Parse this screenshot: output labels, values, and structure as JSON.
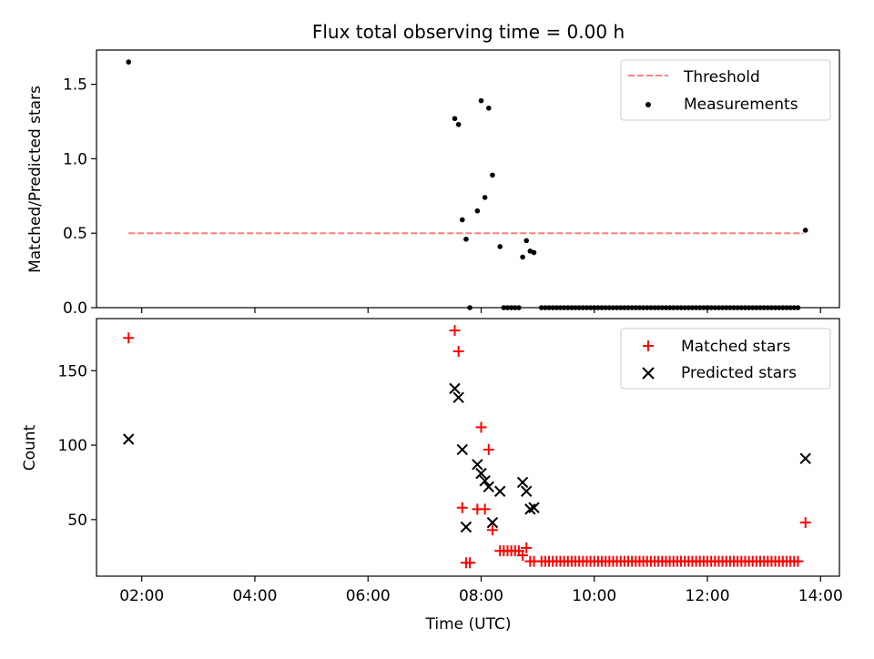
{
  "chart_data": [
    {
      "type": "scatter",
      "title": "Flux total observing time = 0.00 h",
      "xlabel": "",
      "ylabel": "Matched/Predicted stars",
      "xlim": [
        "01:12",
        "14:20"
      ],
      "ylim": [
        0,
        1.73
      ],
      "yticks": [
        0.0,
        0.5,
        1.0,
        1.5
      ],
      "ytick_labels": [
        "0.0",
        "0.5",
        "1.0",
        "1.5"
      ],
      "legend_position": "top-right",
      "threshold": {
        "name": "Threshold",
        "value": 0.5,
        "x": [
          "01:46",
          "13:42"
        ],
        "color": "#ff7f7f",
        "style": "dashed"
      },
      "series": [
        {
          "name": "Measurements",
          "color": "#000000",
          "marker": "dot",
          "points": [
            [
              "01:46",
              1.65
            ],
            [
              "07:32",
              1.27
            ],
            [
              "07:36",
              1.23
            ],
            [
              "07:40",
              0.59
            ],
            [
              "07:44",
              0.46
            ],
            [
              "07:48",
              0.0
            ],
            [
              "07:56",
              0.65
            ],
            [
              "08:00",
              1.39
            ],
            [
              "08:04",
              0.74
            ],
            [
              "08:08",
              1.34
            ],
            [
              "08:12",
              0.89
            ],
            [
              "08:20",
              0.41
            ],
            [
              "08:24",
              0.0
            ],
            [
              "08:28",
              0.0
            ],
            [
              "08:32",
              0.0
            ],
            [
              "08:36",
              0.0
            ],
            [
              "08:40",
              0.0
            ],
            [
              "08:44",
              0.34
            ],
            [
              "08:48",
              0.45
            ],
            [
              "08:52",
              0.38
            ],
            [
              "08:56",
              0.37
            ],
            [
              "09:04",
              0.0
            ],
            [
              "09:08",
              0.0
            ],
            [
              "09:12",
              0.0
            ],
            [
              "09:16",
              0.0
            ],
            [
              "09:20",
              0.0
            ],
            [
              "09:24",
              0.0
            ],
            [
              "09:28",
              0.0
            ],
            [
              "09:32",
              0.0
            ],
            [
              "09:36",
              0.0
            ],
            [
              "09:40",
              0.0
            ],
            [
              "09:44",
              0.0
            ],
            [
              "09:48",
              0.0
            ],
            [
              "09:52",
              0.0
            ],
            [
              "09:56",
              0.0
            ],
            [
              "10:00",
              0.0
            ],
            [
              "10:04",
              0.0
            ],
            [
              "10:08",
              0.0
            ],
            [
              "10:12",
              0.0
            ],
            [
              "10:16",
              0.0
            ],
            [
              "10:20",
              0.0
            ],
            [
              "10:24",
              0.0
            ],
            [
              "10:28",
              0.0
            ],
            [
              "10:32",
              0.0
            ],
            [
              "10:36",
              0.0
            ],
            [
              "10:40",
              0.0
            ],
            [
              "10:44",
              0.0
            ],
            [
              "10:48",
              0.0
            ],
            [
              "10:52",
              0.0
            ],
            [
              "10:56",
              0.0
            ],
            [
              "11:00",
              0.0
            ],
            [
              "11:04",
              0.0
            ],
            [
              "11:08",
              0.0
            ],
            [
              "11:12",
              0.0
            ],
            [
              "11:16",
              0.0
            ],
            [
              "11:20",
              0.0
            ],
            [
              "11:24",
              0.0
            ],
            [
              "11:28",
              0.0
            ],
            [
              "11:32",
              0.0
            ],
            [
              "11:36",
              0.0
            ],
            [
              "11:40",
              0.0
            ],
            [
              "11:44",
              0.0
            ],
            [
              "11:48",
              0.0
            ],
            [
              "11:52",
              0.0
            ],
            [
              "11:56",
              0.0
            ],
            [
              "12:00",
              0.0
            ],
            [
              "12:04",
              0.0
            ],
            [
              "12:08",
              0.0
            ],
            [
              "12:12",
              0.0
            ],
            [
              "12:16",
              0.0
            ],
            [
              "12:20",
              0.0
            ],
            [
              "12:24",
              0.0
            ],
            [
              "12:28",
              0.0
            ],
            [
              "12:32",
              0.0
            ],
            [
              "12:36",
              0.0
            ],
            [
              "12:40",
              0.0
            ],
            [
              "12:44",
              0.0
            ],
            [
              "12:48",
              0.0
            ],
            [
              "12:52",
              0.0
            ],
            [
              "12:56",
              0.0
            ],
            [
              "13:00",
              0.0
            ],
            [
              "13:04",
              0.0
            ],
            [
              "13:08",
              0.0
            ],
            [
              "13:12",
              0.0
            ],
            [
              "13:16",
              0.0
            ],
            [
              "13:20",
              0.0
            ],
            [
              "13:24",
              0.0
            ],
            [
              "13:28",
              0.0
            ],
            [
              "13:32",
              0.0
            ],
            [
              "13:36",
              0.0
            ],
            [
              "13:44",
              0.52
            ]
          ]
        }
      ]
    },
    {
      "type": "scatter",
      "title": "",
      "xlabel": "Time (UTC)",
      "ylabel": "Count",
      "xlim": [
        "01:12",
        "14:20"
      ],
      "ylim": [
        12,
        185
      ],
      "yticks": [
        50,
        100,
        150
      ],
      "ytick_labels": [
        "50",
        "100",
        "150"
      ],
      "xticks": [
        "02:00",
        "04:00",
        "06:00",
        "08:00",
        "10:00",
        "12:00",
        "14:00"
      ],
      "xtick_labels": [
        "02:00",
        "04:00",
        "06:00",
        "08:00",
        "10:00",
        "12:00",
        "14:00"
      ],
      "legend_position": "top-right",
      "series": [
        {
          "name": "Matched stars",
          "color": "#ff0000",
          "marker": "plus",
          "points": [
            [
              "01:46",
              172
            ],
            [
              "07:32",
              177
            ],
            [
              "07:36",
              163
            ],
            [
              "07:40",
              58
            ],
            [
              "07:44",
              21
            ],
            [
              "07:48",
              21
            ],
            [
              "07:56",
              57
            ],
            [
              "08:00",
              112
            ],
            [
              "08:04",
              57
            ],
            [
              "08:08",
              97
            ],
            [
              "08:12",
              43
            ],
            [
              "08:20",
              29
            ],
            [
              "08:24",
              29
            ],
            [
              "08:28",
              29
            ],
            [
              "08:32",
              29
            ],
            [
              "08:36",
              29
            ],
            [
              "08:40",
              29
            ],
            [
              "08:44",
              26
            ],
            [
              "08:48",
              31
            ],
            [
              "08:52",
              22
            ],
            [
              "08:56",
              22
            ],
            [
              "09:04",
              22
            ],
            [
              "09:08",
              22
            ],
            [
              "09:12",
              22
            ],
            [
              "09:16",
              22
            ],
            [
              "09:20",
              22
            ],
            [
              "09:24",
              22
            ],
            [
              "09:28",
              22
            ],
            [
              "09:32",
              22
            ],
            [
              "09:36",
              22
            ],
            [
              "09:40",
              22
            ],
            [
              "09:44",
              22
            ],
            [
              "09:48",
              22
            ],
            [
              "09:52",
              22
            ],
            [
              "09:56",
              22
            ],
            [
              "10:00",
              22
            ],
            [
              "10:04",
              22
            ],
            [
              "10:08",
              22
            ],
            [
              "10:12",
              22
            ],
            [
              "10:16",
              22
            ],
            [
              "10:20",
              22
            ],
            [
              "10:24",
              22
            ],
            [
              "10:28",
              22
            ],
            [
              "10:32",
              22
            ],
            [
              "10:36",
              22
            ],
            [
              "10:40",
              22
            ],
            [
              "10:44",
              22
            ],
            [
              "10:48",
              22
            ],
            [
              "10:52",
              22
            ],
            [
              "10:56",
              22
            ],
            [
              "11:00",
              22
            ],
            [
              "11:04",
              22
            ],
            [
              "11:08",
              22
            ],
            [
              "11:12",
              22
            ],
            [
              "11:16",
              22
            ],
            [
              "11:20",
              22
            ],
            [
              "11:24",
              22
            ],
            [
              "11:28",
              22
            ],
            [
              "11:32",
              22
            ],
            [
              "11:36",
              22
            ],
            [
              "11:40",
              22
            ],
            [
              "11:44",
              22
            ],
            [
              "11:48",
              22
            ],
            [
              "11:52",
              22
            ],
            [
              "11:56",
              22
            ],
            [
              "12:00",
              22
            ],
            [
              "12:04",
              22
            ],
            [
              "12:08",
              22
            ],
            [
              "12:12",
              22
            ],
            [
              "12:16",
              22
            ],
            [
              "12:20",
              22
            ],
            [
              "12:24",
              22
            ],
            [
              "12:28",
              22
            ],
            [
              "12:32",
              22
            ],
            [
              "12:36",
              22
            ],
            [
              "12:40",
              22
            ],
            [
              "12:44",
              22
            ],
            [
              "12:48",
              22
            ],
            [
              "12:52",
              22
            ],
            [
              "12:56",
              22
            ],
            [
              "13:00",
              22
            ],
            [
              "13:04",
              22
            ],
            [
              "13:08",
              22
            ],
            [
              "13:12",
              22
            ],
            [
              "13:16",
              22
            ],
            [
              "13:20",
              22
            ],
            [
              "13:24",
              22
            ],
            [
              "13:28",
              22
            ],
            [
              "13:32",
              22
            ],
            [
              "13:36",
              22
            ],
            [
              "13:44",
              48
            ]
          ]
        },
        {
          "name": "Predicted stars",
          "color": "#000000",
          "marker": "x",
          "points": [
            [
              "01:46",
              104
            ],
            [
              "07:32",
              138
            ],
            [
              "07:36",
              132
            ],
            [
              "07:40",
              97
            ],
            [
              "07:44",
              45
            ],
            [
              "07:56",
              87
            ],
            [
              "08:00",
              81
            ],
            [
              "08:04",
              76
            ],
            [
              "08:08",
              72
            ],
            [
              "08:12",
              48
            ],
            [
              "08:20",
              69
            ],
            [
              "08:44",
              75
            ],
            [
              "08:48",
              69
            ],
            [
              "08:52",
              57
            ],
            [
              "08:56",
              58
            ],
            [
              "13:44",
              91
            ]
          ]
        }
      ]
    }
  ]
}
